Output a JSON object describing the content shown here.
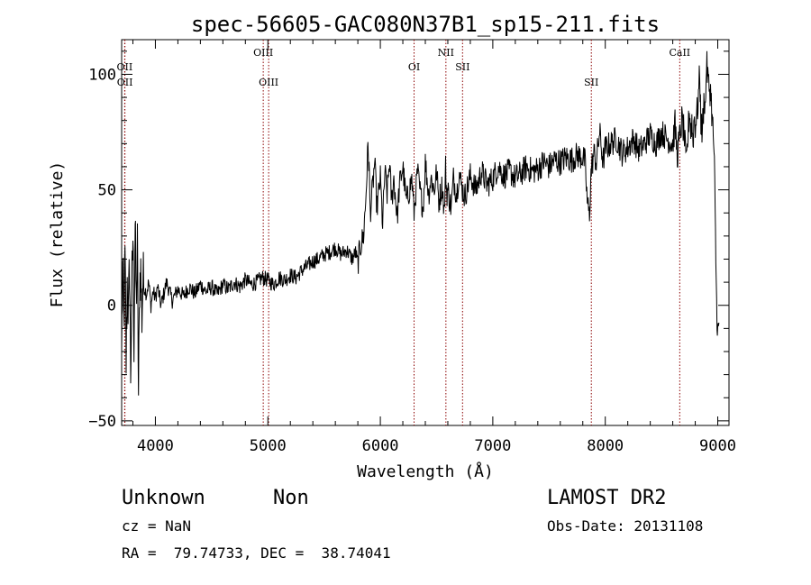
{
  "chart_data": {
    "type": "line",
    "title": "spec-56605-GAC080N37B1_sp15-211.fits",
    "xlabel": "Wavelength (Å)",
    "ylabel": "Flux (relative)",
    "xlim": [
      3700,
      9100
    ],
    "ylim": [
      -52,
      115
    ],
    "xticks": [
      {
        "value": 4000,
        "label": "4000"
      },
      {
        "value": 5000,
        "label": "5000"
      },
      {
        "value": 6000,
        "label": "6000"
      },
      {
        "value": 7000,
        "label": "7000"
      },
      {
        "value": 8000,
        "label": "8000"
      },
      {
        "value": 9000,
        "label": "9000"
      }
    ],
    "yticks": [
      {
        "value": -50,
        "label": "−50"
      },
      {
        "value": 0,
        "label": "0"
      },
      {
        "value": 50,
        "label": "50"
      },
      {
        "value": 100,
        "label": "100"
      }
    ],
    "grid": false,
    "line_color": "#000000",
    "marker_color": "#8b0000",
    "lines": [
      {
        "name": "OII",
        "x": 3727,
        "row": 1
      },
      {
        "name": "OII",
        "x": 3729,
        "row": 2
      },
      {
        "name": "OIII",
        "x": 4959,
        "row": 0
      },
      {
        "name": "OIII",
        "x": 5007,
        "row": 2
      },
      {
        "name": "OI",
        "x": 6300,
        "row": 1
      },
      {
        "name": "NII",
        "x": 6583,
        "row": 0
      },
      {
        "name": "SII",
        "x": 6731,
        "row": 1
      },
      {
        "name": "SII",
        "x": 7876,
        "row": 2
      },
      {
        "name": "CaII",
        "x": 8662,
        "row": 0
      }
    ],
    "spectrum": {
      "x": [
        3700,
        3710,
        3720,
        3730,
        3740,
        3750,
        3760,
        3770,
        3780,
        3790,
        3800,
        3810,
        3820,
        3830,
        3840,
        3850,
        3860,
        3870,
        3880,
        3890,
        3900,
        3920,
        3940,
        3960,
        3980,
        4000,
        4020,
        4050,
        4080,
        4100,
        4150,
        4200,
        4250,
        4300,
        4350,
        4400,
        4450,
        4500,
        4550,
        4600,
        4650,
        4700,
        4750,
        4800,
        4850,
        4900,
        4950,
        5000,
        5050,
        5100,
        5150,
        5200,
        5250,
        5300,
        5350,
        5400,
        5450,
        5500,
        5550,
        5600,
        5650,
        5700,
        5750,
        5780,
        5800,
        5820,
        5850,
        5870,
        5890,
        5900,
        5910,
        5930,
        5950,
        5970,
        6000,
        6020,
        6040,
        6060,
        6080,
        6100,
        6120,
        6150,
        6170,
        6200,
        6230,
        6250,
        6280,
        6300,
        6330,
        6350,
        6380,
        6400,
        6430,
        6450,
        6480,
        6500,
        6520,
        6550,
        6570,
        6580,
        6590,
        6600,
        6630,
        6650,
        6680,
        6700,
        6720,
        6750,
        6800,
        6850,
        6900,
        6950,
        7000,
        7050,
        7100,
        7150,
        7200,
        7250,
        7300,
        7350,
        7400,
        7450,
        7500,
        7550,
        7600,
        7650,
        7700,
        7750,
        7800,
        7820,
        7840,
        7860,
        7870,
        7880,
        7900,
        7920,
        7950,
        7980,
        8000,
        8050,
        8100,
        8150,
        8200,
        8250,
        8300,
        8350,
        8400,
        8450,
        8500,
        8550,
        8600,
        8620,
        8640,
        8660,
        8680,
        8700,
        8720,
        8740,
        8750,
        8760,
        8770,
        8780,
        8790,
        8800,
        8820,
        8840,
        8850,
        8860,
        8870,
        8880,
        8890,
        8900,
        8920,
        8940,
        8950,
        8960,
        8970,
        8980,
        8990,
        9000,
        9010
      ],
      "y": [
        -20,
        15,
        -10,
        20,
        -25,
        10,
        -5,
        18,
        -30,
        5,
        30,
        -15,
        35,
        0,
        25,
        -40,
        10,
        15,
        -5,
        12,
        8,
        5,
        10,
        0,
        6,
        3,
        8,
        0,
        6,
        10,
        2,
        7,
        4,
        8,
        5,
        9,
        6,
        8,
        5,
        9,
        7,
        10,
        8,
        11,
        9,
        10,
        12,
        11,
        9,
        12,
        11,
        13,
        12,
        15,
        17,
        19,
        20,
        22,
        23,
        25,
        22,
        24,
        20,
        23,
        18,
        25,
        30,
        45,
        68,
        60,
        40,
        50,
        62,
        42,
        55,
        35,
        58,
        48,
        62,
        45,
        55,
        38,
        52,
        60,
        45,
        48,
        55,
        40,
        58,
        50,
        42,
        62,
        48,
        55,
        50,
        58,
        45,
        52,
        40,
        60,
        48,
        50,
        42,
        55,
        48,
        58,
        52,
        47,
        56,
        50,
        58,
        52,
        55,
        60,
        56,
        58,
        55,
        57,
        60,
        58,
        59,
        62,
        60,
        63,
        62,
        64,
        63,
        65,
        64,
        62,
        45,
        38,
        55,
        60,
        66,
        62,
        75,
        62,
        68,
        70,
        72,
        66,
        68,
        72,
        67,
        70,
        74,
        70,
        75,
        72,
        70,
        78,
        65,
        72,
        80,
        75,
        60,
        78,
        85,
        75,
        80,
        70,
        82,
        78,
        85,
        100,
        80,
        75,
        82,
        90,
        85,
        105,
        95,
        92,
        80,
        75,
        60,
        30,
        0,
        -12,
        -10
      ]
    }
  },
  "footer": {
    "classification": "Unknown",
    "subclass": "Non",
    "survey": "LAMOST DR2",
    "cz": "cz = NaN",
    "obs_date": "Obs-Date: 20131108",
    "coords": "RA =  79.74733, DEC =  38.74041"
  }
}
